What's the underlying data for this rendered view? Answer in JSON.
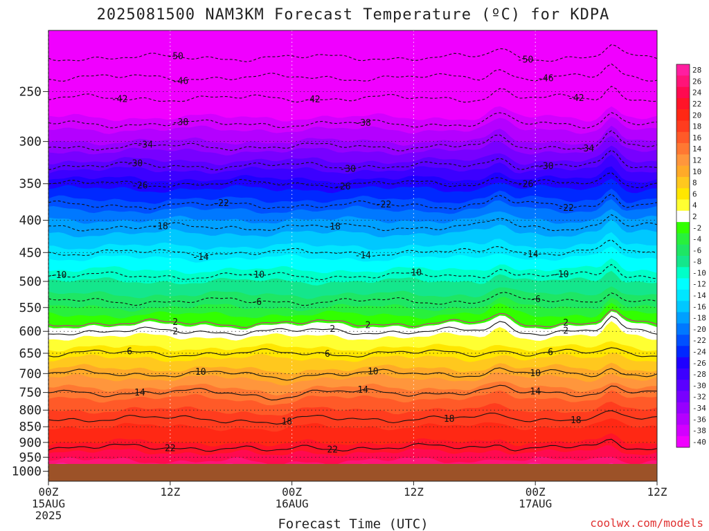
{
  "chart_data": {
    "type": "heatmap",
    "title": "2025081500 NAM3KM Forecast Temperature (ºC) for KDPA",
    "xlabel": "Forecast Time (UTC)",
    "ylabel": "",
    "credit": "coolwx.com/models",
    "y_scale": "log-pressure",
    "y_ticks": [
      250,
      300,
      350,
      400,
      450,
      500,
      550,
      600,
      650,
      700,
      750,
      800,
      850,
      900,
      950,
      1000
    ],
    "y_range": [
      200,
      1000
    ],
    "x_range_hours": [
      0,
      60
    ],
    "x_ticks": [
      {
        "hour": 0,
        "lines": [
          "00Z",
          "15AUG",
          "2025"
        ]
      },
      {
        "hour": 12,
        "lines": [
          "12Z"
        ]
      },
      {
        "hour": 24,
        "lines": [
          "00Z",
          "16AUG"
        ]
      },
      {
        "hour": 36,
        "lines": [
          "12Z"
        ]
      },
      {
        "hour": 48,
        "lines": [
          "00Z",
          "17AUG"
        ]
      },
      {
        "hour": 60,
        "lines": [
          "12Z"
        ]
      }
    ],
    "colorbar": {
      "levels": [
        28,
        26,
        24,
        22,
        20,
        18,
        16,
        14,
        12,
        10,
        8,
        6,
        4,
        2,
        -2,
        -4,
        -6,
        -8,
        -10,
        -12,
        -14,
        -16,
        -18,
        -20,
        -22,
        -24,
        -26,
        -28,
        -30,
        -32,
        -34,
        -36,
        -38,
        -40
      ],
      "colors": [
        "#ff1ea0",
        "#ff1478",
        "#ff0a50",
        "#ff1428",
        "#ff2814",
        "#ff3c1e",
        "#ff5a28",
        "#ff7832",
        "#ff963c",
        "#ffaa28",
        "#ffc81e",
        "#ffe600",
        "#ffff32",
        "#ffffff",
        "#32ff00",
        "#28f03c",
        "#1ee664",
        "#14e68c",
        "#00ffc8",
        "#00ffff",
        "#00e6ff",
        "#00c8ff",
        "#00a0ff",
        "#0078ff",
        "#0050ff",
        "#0028ff",
        "#1e00ff",
        "#3c00ff",
        "#5a00ff",
        "#7800ff",
        "#9600ff",
        "#b400ff",
        "#d200ff",
        "#f000ff"
      ]
    },
    "profile": [
      {
        "p": 200,
        "t": -55
      },
      {
        "p": 250,
        "t": -43
      },
      {
        "p": 300,
        "t": -35
      },
      {
        "p": 350,
        "t": -26
      },
      {
        "p": 400,
        "t": -19
      },
      {
        "p": 450,
        "t": -14
      },
      {
        "p": 500,
        "t": -9
      },
      {
        "p": 550,
        "t": -5
      },
      {
        "p": 575,
        "t": 0
      },
      {
        "p": 600,
        "t": 2
      },
      {
        "p": 650,
        "t": 6
      },
      {
        "p": 700,
        "t": 10
      },
      {
        "p": 750,
        "t": 14
      },
      {
        "p": 800,
        "t": 17
      },
      {
        "p": 850,
        "t": 19
      },
      {
        "p": 900,
        "t": 21
      },
      {
        "p": 950,
        "t": 24
      },
      {
        "p": 975,
        "t": 26
      }
    ],
    "isotherms": [
      {
        "t": -50,
        "labels": [
          {
            "hour": 12.5,
            "text": "-50"
          },
          {
            "hour": 47,
            "text": "-50"
          }
        ]
      },
      {
        "t": -46,
        "labels": [
          {
            "hour": 13,
            "text": "-46"
          },
          {
            "hour": 49,
            "text": "-46"
          }
        ]
      },
      {
        "t": -42,
        "labels": [
          {
            "hour": 7,
            "text": "-42"
          },
          {
            "hour": 26,
            "text": "-42"
          },
          {
            "hour": 52,
            "text": "-42"
          }
        ]
      },
      {
        "t": -38,
        "labels": [
          {
            "hour": 13,
            "text": "-38"
          },
          {
            "hour": 31,
            "text": "-38"
          }
        ]
      },
      {
        "t": -34,
        "labels": [
          {
            "hour": 9.5,
            "text": "-34"
          },
          {
            "hour": 53,
            "text": "-34"
          }
        ]
      },
      {
        "t": -30,
        "labels": [
          {
            "hour": 8.5,
            "text": "-30"
          },
          {
            "hour": 29.5,
            "text": "-30"
          },
          {
            "hour": 49,
            "text": "-30"
          }
        ]
      },
      {
        "t": -26,
        "labels": [
          {
            "hour": 9,
            "text": "-26"
          },
          {
            "hour": 29,
            "text": "-26"
          },
          {
            "hour": 47,
            "text": "-26"
          }
        ]
      },
      {
        "t": -22,
        "labels": [
          {
            "hour": 17,
            "text": "-22"
          },
          {
            "hour": 33,
            "text": "-22"
          },
          {
            "hour": 51,
            "text": "-22"
          }
        ]
      },
      {
        "t": -18,
        "labels": [
          {
            "hour": 11,
            "text": "-18"
          },
          {
            "hour": 28,
            "text": "-18"
          }
        ]
      },
      {
        "t": -14,
        "labels": [
          {
            "hour": 15,
            "text": "-14"
          },
          {
            "hour": 31,
            "text": "-14"
          },
          {
            "hour": 47.5,
            "text": "-14"
          }
        ]
      },
      {
        "t": -10,
        "labels": [
          {
            "hour": 1,
            "text": "-10"
          },
          {
            "hour": 20.5,
            "text": "-10"
          },
          {
            "hour": 36,
            "text": "-10"
          },
          {
            "hour": 50.5,
            "text": "-10"
          }
        ]
      },
      {
        "t": -6,
        "labels": [
          {
            "hour": 20.5,
            "text": "-6"
          },
          {
            "hour": 48,
            "text": "-6"
          }
        ]
      },
      {
        "t": 2,
        "kind": "freezing",
        "labels": [
          {
            "hour": 12.5,
            "text": "2"
          },
          {
            "hour": 31.5,
            "text": "2"
          },
          {
            "hour": 51,
            "text": "2"
          }
        ]
      },
      {
        "t": 2,
        "kind": "warm",
        "labels": [
          {
            "hour": 12.5,
            "text": "2"
          },
          {
            "hour": 28,
            "text": "2"
          },
          {
            "hour": 51,
            "text": "2"
          }
        ]
      },
      {
        "t": 6,
        "labels": [
          {
            "hour": 8,
            "text": "6"
          },
          {
            "hour": 27.5,
            "text": "6"
          },
          {
            "hour": 49.5,
            "text": "6"
          }
        ]
      },
      {
        "t": 10,
        "labels": [
          {
            "hour": 15,
            "text": "10"
          },
          {
            "hour": 32,
            "text": "10"
          },
          {
            "hour": 48,
            "text": "10"
          }
        ]
      },
      {
        "t": 14,
        "labels": [
          {
            "hour": 9,
            "text": "14"
          },
          {
            "hour": 31,
            "text": "14"
          },
          {
            "hour": 48,
            "text": "14"
          }
        ]
      },
      {
        "t": 18,
        "labels": [
          {
            "hour": 23.5,
            "text": "18"
          },
          {
            "hour": 39.5,
            "text": "18"
          },
          {
            "hour": 52,
            "text": "18"
          }
        ]
      },
      {
        "t": 22,
        "labels": [
          {
            "hour": 12,
            "text": "22"
          },
          {
            "hour": 28,
            "text": "22"
          }
        ]
      }
    ],
    "ground_color": "#9c5228"
  }
}
